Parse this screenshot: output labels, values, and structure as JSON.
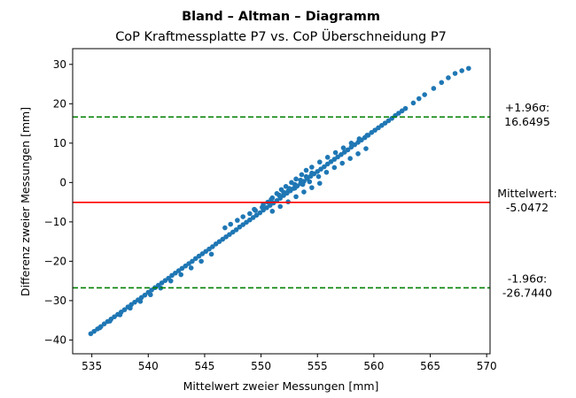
{
  "chart_data": {
    "type": "scatter",
    "title": "Bland – Altman – Diagramm",
    "subtitle": "CoP Kraftmessplatte P7 vs. CoP Überschneidung P7",
    "xlabel": "Mittelwert zweier Messungen [mm]",
    "ylabel": "Differenz zweier Messungen [mm]",
    "xlim": [
      533.3,
      570.3
    ],
    "ylim": [
      -43.5,
      34.0
    ],
    "xticks": [
      535,
      540,
      545,
      550,
      555,
      560,
      565,
      570
    ],
    "yticks": [
      -40,
      -30,
      -20,
      -10,
      0,
      10,
      20,
      30
    ],
    "grid": false,
    "point_color": "#1f77b4",
    "series": [
      {
        "values": [
          [
            534.9,
            -38.4
          ],
          [
            535.2,
            -37.8
          ],
          [
            535.5,
            -37.2
          ],
          [
            535.8,
            -36.6
          ],
          [
            536.1,
            -35.9
          ],
          [
            536.4,
            -35.3
          ],
          [
            536.7,
            -34.7
          ],
          [
            537.0,
            -34.1
          ],
          [
            537.3,
            -33.5
          ],
          [
            537.6,
            -32.9
          ],
          [
            537.9,
            -32.3
          ],
          [
            538.2,
            -31.6
          ],
          [
            538.5,
            -31.0
          ],
          [
            538.8,
            -30.4
          ],
          [
            539.1,
            -29.8
          ],
          [
            539.4,
            -29.2
          ],
          [
            539.7,
            -28.6
          ],
          [
            540.0,
            -27.9
          ],
          [
            540.3,
            -27.3
          ],
          [
            540.6,
            -26.7
          ],
          [
            540.9,
            -26.1
          ],
          [
            541.2,
            -25.5
          ],
          [
            541.5,
            -24.9
          ],
          [
            541.8,
            -24.3
          ],
          [
            542.1,
            -23.6
          ],
          [
            542.4,
            -23.0
          ],
          [
            542.7,
            -22.4
          ],
          [
            543.0,
            -21.8
          ],
          [
            543.3,
            -21.2
          ],
          [
            543.6,
            -20.6
          ],
          [
            543.9,
            -20.0
          ],
          [
            544.2,
            -19.3
          ],
          [
            544.5,
            -18.7
          ],
          [
            544.8,
            -18.1
          ],
          [
            545.1,
            -17.5
          ],
          [
            545.4,
            -16.9
          ],
          [
            545.7,
            -16.3
          ],
          [
            546.0,
            -15.6
          ],
          [
            546.3,
            -15.0
          ],
          [
            546.6,
            -14.4
          ],
          [
            546.9,
            -13.8
          ],
          [
            547.2,
            -13.2
          ],
          [
            547.5,
            -12.6
          ],
          [
            547.8,
            -12.0
          ],
          [
            548.1,
            -11.3
          ],
          [
            548.4,
            -10.7
          ],
          [
            548.7,
            -10.1
          ],
          [
            549.0,
            -9.5
          ],
          [
            549.3,
            -8.9
          ],
          [
            549.6,
            -8.3
          ],
          [
            549.9,
            -7.7
          ],
          [
            550.2,
            -7.0
          ],
          [
            550.5,
            -6.4
          ],
          [
            550.8,
            -5.8
          ],
          [
            551.1,
            -5.2
          ],
          [
            551.4,
            -4.6
          ],
          [
            551.7,
            -4.0
          ],
          [
            552.0,
            -3.3
          ],
          [
            552.3,
            -2.7
          ],
          [
            552.6,
            -2.1
          ],
          [
            552.9,
            -1.5
          ],
          [
            553.2,
            -0.9
          ],
          [
            553.5,
            -0.3
          ],
          [
            553.8,
            0.3
          ],
          [
            554.1,
            1.0
          ],
          [
            554.4,
            1.6
          ],
          [
            554.7,
            2.2
          ],
          [
            555.0,
            2.8
          ],
          [
            555.3,
            3.4
          ],
          [
            555.6,
            4.0
          ],
          [
            555.9,
            4.7
          ],
          [
            556.2,
            5.3
          ],
          [
            556.5,
            5.9
          ],
          [
            556.8,
            6.5
          ],
          [
            557.1,
            7.1
          ],
          [
            557.4,
            7.7
          ],
          [
            557.7,
            8.3
          ],
          [
            558.0,
            9.0
          ],
          [
            558.3,
            9.6
          ],
          [
            558.6,
            10.2
          ],
          [
            558.9,
            10.8
          ],
          [
            559.2,
            11.4
          ],
          [
            559.5,
            12.0
          ],
          [
            559.8,
            12.7
          ],
          [
            560.1,
            13.3
          ],
          [
            560.4,
            13.9
          ],
          [
            560.7,
            14.5
          ],
          [
            561.0,
            15.1
          ],
          [
            561.3,
            15.7
          ],
          [
            561.6,
            16.3
          ],
          [
            561.9,
            17.0
          ],
          [
            562.2,
            17.6
          ],
          [
            562.5,
            18.2
          ],
          [
            562.8,
            18.8
          ],
          [
            563.5,
            20.2
          ],
          [
            564.0,
            21.3
          ],
          [
            564.5,
            22.3
          ],
          [
            565.3,
            23.9
          ],
          [
            566.0,
            25.4
          ],
          [
            566.6,
            26.6
          ],
          [
            567.2,
            27.7
          ],
          [
            567.8,
            28.4
          ],
          [
            568.4,
            29.0
          ],
          [
            546.8,
            -11.5
          ],
          [
            547.3,
            -10.6
          ],
          [
            547.9,
            -9.6
          ],
          [
            548.4,
            -8.7
          ],
          [
            549.0,
            -7.9
          ],
          [
            549.5,
            -7.1
          ],
          [
            550.1,
            -6.3
          ],
          [
            550.6,
            -5.0
          ],
          [
            551.0,
            -3.9
          ],
          [
            551.4,
            -2.8
          ],
          [
            551.8,
            -1.8
          ],
          [
            552.2,
            -1.0
          ],
          [
            552.7,
            0.0
          ],
          [
            553.1,
            0.9
          ],
          [
            553.6,
            2.0
          ],
          [
            554.0,
            3.1
          ],
          [
            554.5,
            3.9
          ],
          [
            555.2,
            5.2
          ],
          [
            555.9,
            6.4
          ],
          [
            556.6,
            7.6
          ],
          [
            557.3,
            8.8
          ],
          [
            558.0,
            10.0
          ],
          [
            558.7,
            11.1
          ],
          [
            559.4,
            12.0
          ],
          [
            549.4,
            -6.8
          ],
          [
            550.2,
            -5.5
          ],
          [
            550.9,
            -4.3
          ],
          [
            551.6,
            -3.2
          ],
          [
            552.4,
            -2.2
          ],
          [
            553.0,
            -1.4
          ],
          [
            553.7,
            -0.5
          ],
          [
            554.3,
            0.2
          ],
          [
            555.1,
            1.5
          ],
          [
            555.8,
            2.6
          ],
          [
            556.5,
            3.8
          ],
          [
            557.2,
            4.9
          ],
          [
            557.9,
            6.1
          ],
          [
            558.6,
            7.3
          ],
          [
            559.3,
            8.6
          ],
          [
            551.0,
            -7.3
          ],
          [
            551.7,
            -6.1
          ],
          [
            552.4,
            -4.9
          ],
          [
            553.1,
            -3.6
          ],
          [
            553.8,
            -2.4
          ],
          [
            554.5,
            -1.3
          ],
          [
            555.2,
            -0.2
          ],
          [
            552.0,
            -2.5
          ],
          [
            552.5,
            -1.5
          ],
          [
            553.0,
            -0.5
          ],
          [
            553.5,
            0.6
          ],
          [
            554.0,
            1.5
          ],
          [
            554.5,
            2.4
          ],
          [
            545.6,
            -18.2
          ],
          [
            544.7,
            -20.0
          ],
          [
            543.8,
            -21.7
          ],
          [
            542.9,
            -23.4
          ],
          [
            542.0,
            -25.0
          ],
          [
            541.1,
            -26.8
          ],
          [
            540.2,
            -28.5
          ],
          [
            539.3,
            -30.2
          ],
          [
            538.4,
            -31.9
          ],
          [
            537.5,
            -33.6
          ],
          [
            536.6,
            -35.2
          ],
          [
            535.7,
            -36.9
          ]
        ]
      }
    ],
    "reference_lines": [
      {
        "name": "+1.96σ",
        "value": 16.6495,
        "color": "#008000",
        "style": "dashed",
        "label_line1": "+1.96σ:",
        "label_line2": "16.6495"
      },
      {
        "name": "Mittelwert",
        "value": -5.0472,
        "color": "#ff0000",
        "style": "solid",
        "label_line1": "Mittelwert:",
        "label_line2": "-5.0472"
      },
      {
        "name": "-1.96σ",
        "value": -26.744,
        "color": "#008000",
        "style": "dashed",
        "label_line1": "-1.96σ:",
        "label_line2": "-26.7440"
      }
    ]
  }
}
